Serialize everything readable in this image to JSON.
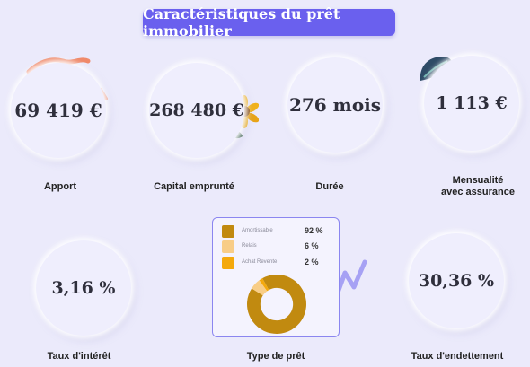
{
  "title": "Caractéristiques du prêt immobilier",
  "metrics": {
    "apport": {
      "value": "69 419 €",
      "label": "Apport"
    },
    "capital": {
      "value": "268 480 €",
      "label": "Capital emprunté"
    },
    "duree": {
      "value": "276 mois",
      "label": "Durée"
    },
    "mensualite": {
      "value": "1 113 €",
      "label_line1": "Mensualité",
      "label_line2": "avec assurance"
    },
    "taux_interet": {
      "value": "3,16 %",
      "label": "Taux d'intérêt"
    },
    "type_pret": {
      "label": "Type de prêt"
    },
    "taux_endettement": {
      "value": "30,36 %",
      "label": "Taux d'endettement"
    }
  },
  "chart_data": {
    "type": "pie",
    "categories": [
      "Amortissable",
      "Relais",
      "Achat Revente"
    ],
    "values": [
      92,
      6,
      2
    ],
    "value_labels": [
      "92 %",
      "6 %",
      "2 %"
    ],
    "colors": [
      "#c18a10",
      "#f8cd87",
      "#f4a90c"
    ],
    "hole": 0.55,
    "legend": "top"
  }
}
